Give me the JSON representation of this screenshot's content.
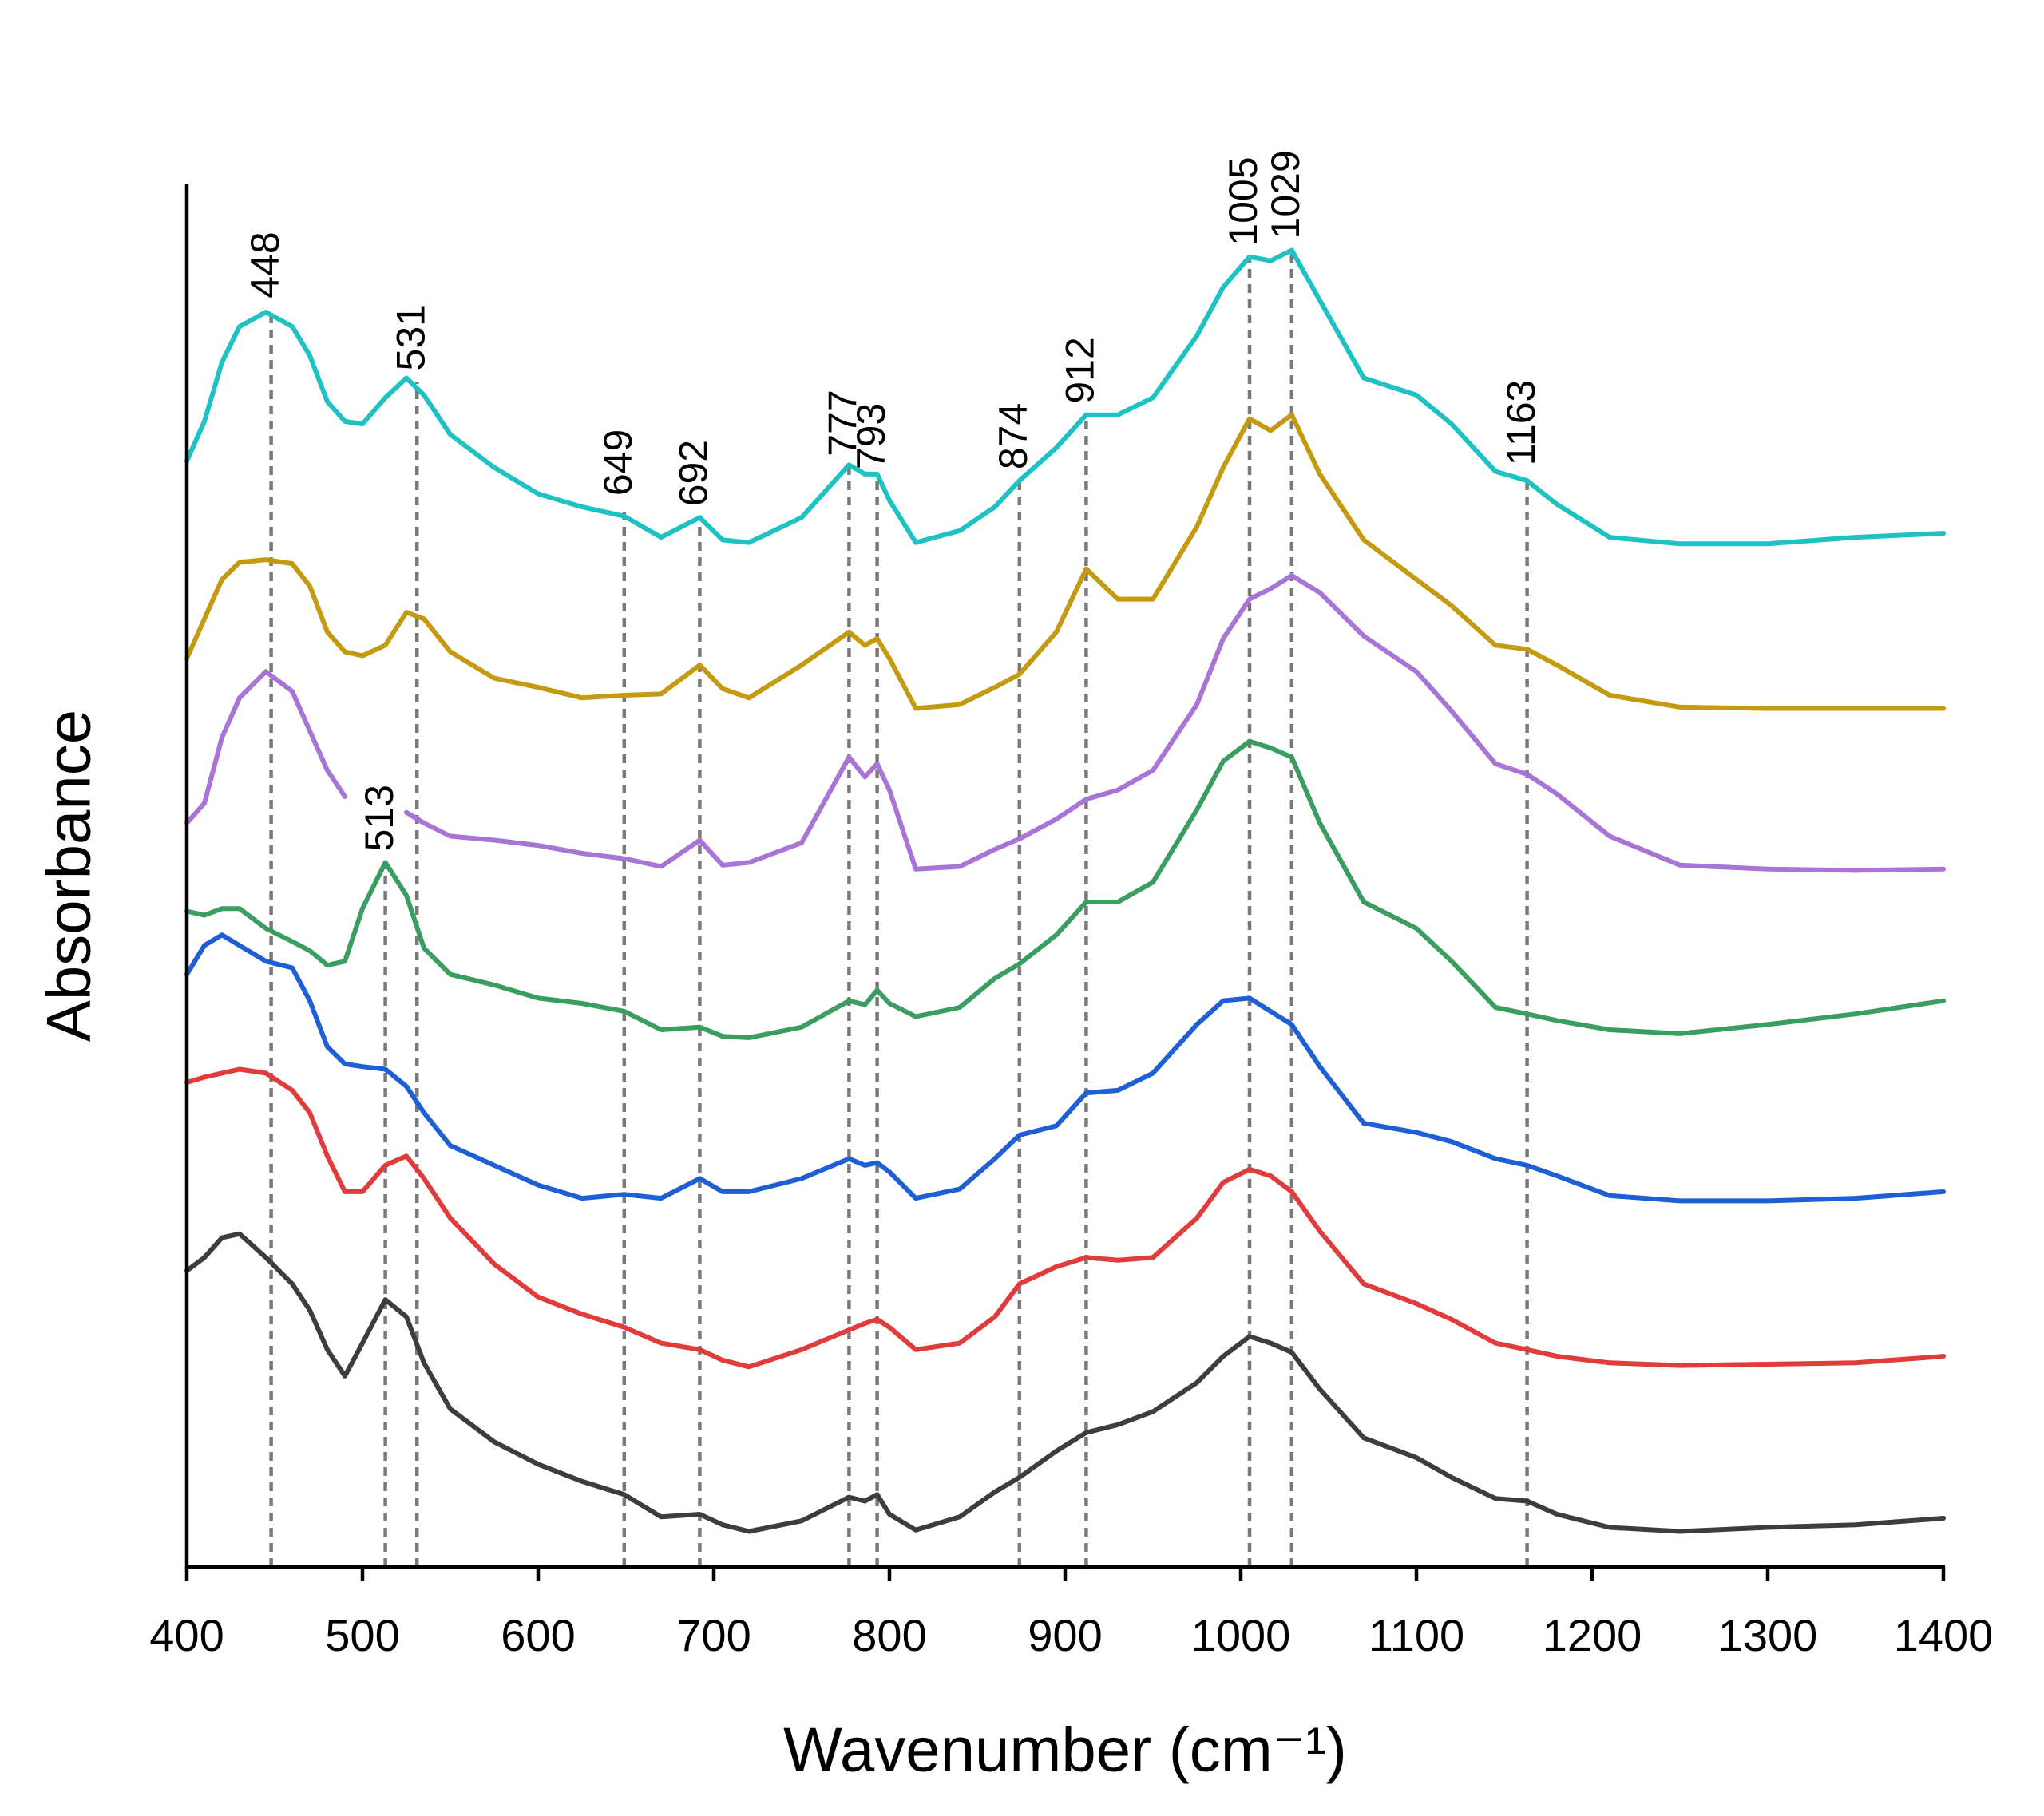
{
  "chart_data": {
    "type": "line",
    "xlabel": "Wavenumber (cm⁻¹)",
    "ylabel": "Absorbance",
    "xlim": [
      400,
      1400
    ],
    "ylim": [
      0,
      1050
    ],
    "xticks": [
      400,
      500,
      600,
      700,
      800,
      900,
      1000,
      1100,
      1200,
      1300,
      1400
    ],
    "x": [
      400,
      410,
      420,
      430,
      445,
      460,
      470,
      480,
      490,
      500,
      513,
      525,
      535,
      550,
      575,
      600,
      625,
      649,
      670,
      692,
      705,
      720,
      750,
      777,
      786,
      793,
      800,
      815,
      840,
      860,
      874,
      895,
      912,
      930,
      950,
      975,
      990,
      1005,
      1017,
      1029,
      1045,
      1070,
      1100,
      1120,
      1145,
      1163,
      1180,
      1210,
      1250,
      1300,
      1350,
      1400
    ],
    "series": [
      {
        "color": "#3d3d3d",
        "values": [
          225,
          235,
          250,
          253,
          235,
          215,
          195,
          165,
          145,
          170,
          203,
          190,
          155,
          120,
          95,
          78,
          65,
          55,
          38,
          40,
          32,
          27,
          35,
          53,
          50,
          55,
          40,
          28,
          38,
          57,
          68,
          88,
          102,
          108,
          118,
          140,
          160,
          175,
          170,
          163,
          135,
          98,
          83,
          68,
          52,
          50,
          40,
          30,
          27,
          30,
          32,
          37
        ]
      },
      {
        "color": "#e03c3c",
        "values": [
          368,
          372,
          375,
          378,
          375,
          362,
          345,
          312,
          285,
          285,
          305,
          312,
          295,
          265,
          230,
          205,
          192,
          182,
          170,
          165,
          157,
          152,
          165,
          180,
          185,
          188,
          182,
          165,
          170,
          190,
          215,
          228,
          235,
          233,
          235,
          265,
          292,
          302,
          297,
          285,
          255,
          215,
          200,
          188,
          170,
          165,
          160,
          155,
          153,
          154,
          155,
          160
        ]
      },
      {
        "color": "#1f5fd6",
        "values": [
          450,
          472,
          480,
          472,
          460,
          455,
          430,
          395,
          382,
          380,
          378,
          365,
          345,
          320,
          305,
          290,
          280,
          283,
          280,
          295,
          285,
          285,
          295,
          310,
          305,
          307,
          300,
          280,
          287,
          310,
          328,
          335,
          360,
          362,
          375,
          412,
          430,
          432,
          422,
          412,
          380,
          337,
          330,
          323,
          310,
          305,
          297,
          282,
          278,
          278,
          280,
          285
        ]
      },
      {
        "color": "#3a9e62",
        "values": [
          498,
          495,
          500,
          500,
          485,
          475,
          468,
          457,
          460,
          500,
          535,
          510,
          470,
          450,
          442,
          432,
          428,
          422,
          408,
          410,
          403,
          402,
          410,
          430,
          427,
          438,
          428,
          418,
          425,
          447,
          458,
          480,
          505,
          505,
          520,
          575,
          612,
          627,
          622,
          615,
          565,
          505,
          485,
          460,
          425,
          420,
          415,
          408,
          405,
          412,
          420,
          430
        ]
      },
      {
        "color": "#a874d6",
        "values": [
          565,
          580,
          630,
          660,
          680,
          665,
          635,
          605,
          585,
          null,
          null,
          573,
          565,
          555,
          552,
          548,
          542,
          538,
          532,
          552,
          533,
          535,
          550,
          615,
          600,
          610,
          590,
          530,
          532,
          545,
          553,
          568,
          583,
          590,
          605,
          655,
          705,
          735,
          743,
          753,
          740,
          707,
          680,
          650,
          610,
          602,
          587,
          555,
          533,
          530,
          529,
          530
        ]
      },
      {
        "color": "#c49a10",
        "values": [
          690,
          720,
          750,
          763,
          765,
          762,
          745,
          710,
          695,
          692,
          700,
          725,
          720,
          695,
          675,
          668,
          660,
          662,
          663,
          685,
          667,
          660,
          685,
          710,
          700,
          705,
          690,
          652,
          655,
          668,
          678,
          710,
          758,
          735,
          735,
          790,
          835,
          872,
          863,
          875,
          830,
          780,
          750,
          730,
          700,
          697,
          685,
          662,
          653,
          652,
          652,
          652
        ]
      },
      {
        "color": "#1fc2c2",
        "values": [
          840,
          870,
          915,
          942,
          953,
          942,
          920,
          885,
          870,
          868,
          888,
          903,
          890,
          860,
          835,
          815,
          805,
          798,
          782,
          797,
          780,
          778,
          797,
          837,
          830,
          830,
          810,
          778,
          787,
          805,
          825,
          850,
          875,
          875,
          888,
          935,
          972,
          995,
          992,
          1000,
          962,
          903,
          890,
          868,
          832,
          825,
          807,
          782,
          777,
          777,
          782,
          785
        ]
      }
    ],
    "annotations": [
      {
        "x": 448,
        "y": 955
      },
      {
        "x": 531,
        "y": 900
      },
      {
        "x": 649,
        "y": 805
      },
      {
        "x": 692,
        "y": 797
      },
      {
        "x": 777,
        "y": 835
      },
      {
        "x": 793,
        "y": 825
      },
      {
        "x": 874,
        "y": 825
      },
      {
        "x": 912,
        "y": 875
      },
      {
        "x": 1005,
        "y": 995
      },
      {
        "x": 1029,
        "y": 1000
      },
      {
        "x": 1163,
        "y": 828
      },
      {
        "x": 513,
        "y": 535
      }
    ]
  }
}
